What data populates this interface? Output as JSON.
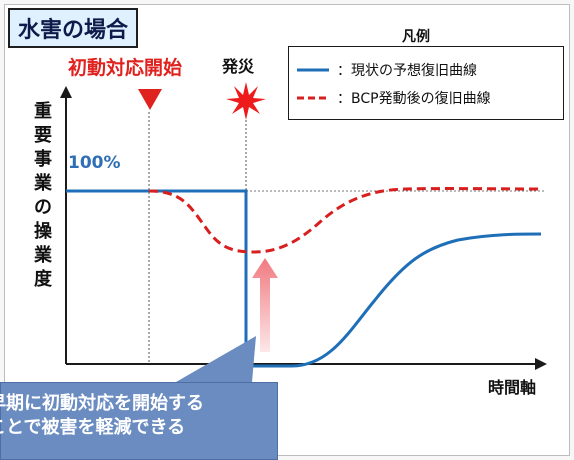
{
  "title": "水害の場合",
  "legend": {
    "title": "凡例",
    "items": [
      {
        "label": "：現状の予想復旧曲線",
        "color": "#1f6fb8",
        "style": "solid"
      },
      {
        "label": "：BCP発動後の復旧曲線",
        "color": "#d81f1f",
        "style": "dashed"
      }
    ]
  },
  "labels": {
    "initial_response": "初動対応開始",
    "disaster": "発災",
    "y_axis": [
      "重",
      "要",
      "事",
      "業",
      "の",
      "操",
      "業",
      "度"
    ],
    "hundred": "100%",
    "x_axis": "時間軸"
  },
  "callout": {
    "lines": [
      "早期に初動対応を開始する",
      "ことで被害を軽減できる"
    ]
  },
  "colors": {
    "current": "#1f6fb8",
    "bcp": "#d81f1f",
    "triangle": "#e0221f",
    "star": "#ee1b1b",
    "arrow_top": "#f07a80",
    "arrow_bottom": "#fde7e9",
    "callout": "#6b8cc1"
  }
}
